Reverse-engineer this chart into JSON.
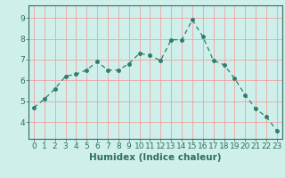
{
  "x": [
    0,
    1,
    2,
    3,
    4,
    5,
    6,
    7,
    8,
    9,
    10,
    11,
    12,
    13,
    14,
    15,
    16,
    17,
    18,
    19,
    20,
    21,
    22,
    23
  ],
  "y": [
    4.7,
    5.1,
    5.6,
    6.2,
    6.3,
    6.5,
    6.9,
    6.5,
    6.5,
    6.8,
    7.3,
    7.2,
    6.95,
    7.95,
    7.95,
    8.9,
    8.1,
    6.95,
    6.75,
    6.1,
    5.3,
    4.65,
    4.25,
    3.6
  ],
  "line_color": "#2e7d6e",
  "marker": "o",
  "marker_size": 2.5,
  "bg_color": "#cff0ea",
  "grid_color": "#f0a0a0",
  "axis_color": "#2e6e60",
  "xlabel": "Humidex (Indice chaleur)",
  "ylim": [
    3.2,
    9.6
  ],
  "xlim": [
    -0.5,
    23.5
  ],
  "yticks": [
    4,
    5,
    6,
    7,
    8,
    9
  ],
  "xticks": [
    0,
    1,
    2,
    3,
    4,
    5,
    6,
    7,
    8,
    9,
    10,
    11,
    12,
    13,
    14,
    15,
    16,
    17,
    18,
    19,
    20,
    21,
    22,
    23
  ],
  "tick_labelsize": 6.5,
  "xlabel_fontsize": 7.5
}
